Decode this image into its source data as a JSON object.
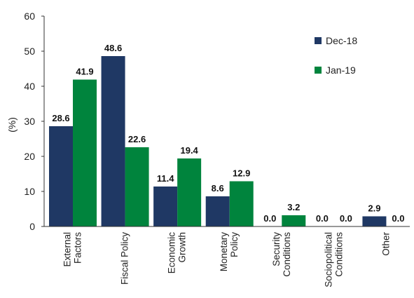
{
  "chart_data": {
    "type": "bar",
    "ylabel": "(%)",
    "ylim": [
      0,
      60
    ],
    "yticks": [
      0,
      10,
      20,
      30,
      40,
      50,
      60
    ],
    "grid": false,
    "legend_position": "top-right",
    "categories": [
      [
        "External",
        "Factors"
      ],
      [
        "Fiscal Policy"
      ],
      [
        "Economic",
        "Growth"
      ],
      [
        "Monetary",
        "Policy"
      ],
      [
        "Security",
        "Conditions"
      ],
      [
        "Sociopolitical",
        "Conditions"
      ],
      [
        "Other"
      ]
    ],
    "series": [
      {
        "name": "Dec-18",
        "color": "#1f3864",
        "values": [
          28.6,
          48.6,
          11.4,
          8.6,
          0.0,
          0.0,
          2.9
        ],
        "labels": [
          "28.6",
          "48.6",
          "11.4",
          "8.6",
          "0.0",
          "0.0",
          "2.9"
        ]
      },
      {
        "name": "Jan-19",
        "color": "#00843d",
        "values": [
          41.9,
          22.6,
          19.4,
          12.9,
          3.2,
          0.0,
          0.0
        ],
        "labels": [
          "41.9",
          "22.6",
          "19.4",
          "12.9",
          "3.2",
          "0.0",
          "0.0"
        ]
      }
    ]
  }
}
